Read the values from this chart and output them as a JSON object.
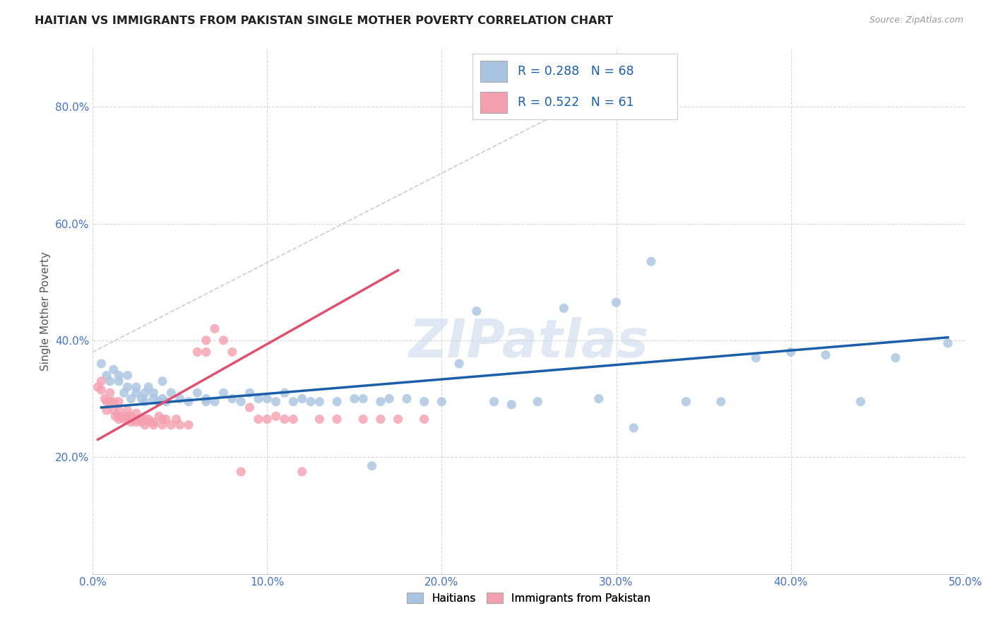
{
  "title": "HAITIAN VS IMMIGRANTS FROM PAKISTAN SINGLE MOTHER POVERTY CORRELATION CHART",
  "source": "Source: ZipAtlas.com",
  "ylabel": "Single Mother Poverty",
  "xlim": [
    0,
    0.5
  ],
  "ylim": [
    0.0,
    0.9
  ],
  "xticks": [
    0.0,
    0.1,
    0.2,
    0.3,
    0.4,
    0.5
  ],
  "yticks": [
    0.2,
    0.4,
    0.6,
    0.8
  ],
  "ytick_labels": [
    "20.0%",
    "40.0%",
    "60.0%",
    "80.0%"
  ],
  "xtick_labels": [
    "0.0%",
    "10.0%",
    "20.0%",
    "30.0%",
    "40.0%",
    "50.0%"
  ],
  "legend_labels": [
    "Haitians",
    "Immigrants from Pakistan"
  ],
  "blue_R": 0.288,
  "blue_N": 68,
  "pink_R": 0.522,
  "pink_N": 61,
  "blue_color": "#a8c4e0",
  "pink_color": "#f4a0b0",
  "blue_line_color": "#1a5fa8",
  "pink_line_color": "#e05070",
  "watermark": "ZIPatlas",
  "blue_scatter_x": [
    0.005,
    0.008,
    0.01,
    0.012,
    0.015,
    0.015,
    0.018,
    0.02,
    0.02,
    0.022,
    0.025,
    0.025,
    0.028,
    0.03,
    0.03,
    0.032,
    0.035,
    0.035,
    0.038,
    0.04,
    0.04,
    0.042,
    0.045,
    0.05,
    0.055,
    0.06,
    0.065,
    0.065,
    0.07,
    0.075,
    0.08,
    0.085,
    0.09,
    0.095,
    0.1,
    0.105,
    0.11,
    0.115,
    0.12,
    0.125,
    0.13,
    0.14,
    0.15,
    0.155,
    0.16,
    0.165,
    0.17,
    0.18,
    0.19,
    0.2,
    0.21,
    0.22,
    0.23,
    0.24,
    0.255,
    0.27,
    0.29,
    0.3,
    0.31,
    0.32,
    0.34,
    0.36,
    0.38,
    0.4,
    0.42,
    0.44,
    0.46,
    0.49
  ],
  "blue_scatter_y": [
    0.36,
    0.34,
    0.33,
    0.35,
    0.34,
    0.33,
    0.31,
    0.32,
    0.34,
    0.3,
    0.32,
    0.31,
    0.3,
    0.295,
    0.31,
    0.32,
    0.3,
    0.31,
    0.295,
    0.3,
    0.33,
    0.295,
    0.31,
    0.3,
    0.295,
    0.31,
    0.295,
    0.3,
    0.295,
    0.31,
    0.3,
    0.295,
    0.31,
    0.3,
    0.3,
    0.295,
    0.31,
    0.295,
    0.3,
    0.295,
    0.295,
    0.295,
    0.3,
    0.3,
    0.185,
    0.295,
    0.3,
    0.3,
    0.295,
    0.295,
    0.36,
    0.45,
    0.295,
    0.29,
    0.295,
    0.455,
    0.3,
    0.465,
    0.25,
    0.535,
    0.295,
    0.295,
    0.37,
    0.38,
    0.375,
    0.295,
    0.37,
    0.395
  ],
  "pink_scatter_x": [
    0.003,
    0.005,
    0.005,
    0.007,
    0.008,
    0.008,
    0.01,
    0.01,
    0.012,
    0.012,
    0.013,
    0.015,
    0.015,
    0.015,
    0.015,
    0.018,
    0.018,
    0.02,
    0.02,
    0.02,
    0.022,
    0.022,
    0.025,
    0.025,
    0.025,
    0.028,
    0.028,
    0.03,
    0.03,
    0.032,
    0.033,
    0.035,
    0.035,
    0.038,
    0.04,
    0.04,
    0.042,
    0.045,
    0.048,
    0.05,
    0.055,
    0.06,
    0.065,
    0.065,
    0.07,
    0.075,
    0.08,
    0.085,
    0.09,
    0.095,
    0.1,
    0.105,
    0.11,
    0.115,
    0.12,
    0.13,
    0.14,
    0.155,
    0.165,
    0.175,
    0.19
  ],
  "pink_scatter_y": [
    0.32,
    0.33,
    0.315,
    0.3,
    0.295,
    0.28,
    0.31,
    0.295,
    0.295,
    0.28,
    0.27,
    0.295,
    0.28,
    0.27,
    0.265,
    0.27,
    0.265,
    0.28,
    0.27,
    0.265,
    0.27,
    0.26,
    0.275,
    0.265,
    0.26,
    0.265,
    0.26,
    0.265,
    0.255,
    0.265,
    0.26,
    0.26,
    0.255,
    0.27,
    0.265,
    0.255,
    0.265,
    0.255,
    0.265,
    0.255,
    0.255,
    0.38,
    0.38,
    0.4,
    0.42,
    0.4,
    0.38,
    0.175,
    0.285,
    0.265,
    0.265,
    0.27,
    0.265,
    0.265,
    0.175,
    0.265,
    0.265,
    0.265,
    0.265,
    0.265,
    0.265
  ],
  "diag_line": [
    [
      0.0,
      0.32
    ],
    [
      0.38,
      0.87
    ]
  ],
  "blue_line_x": [
    0.005,
    0.49
  ],
  "blue_line_y": [
    0.285,
    0.405
  ],
  "pink_line_x": [
    0.003,
    0.175
  ],
  "pink_line_y": [
    0.23,
    0.52
  ]
}
